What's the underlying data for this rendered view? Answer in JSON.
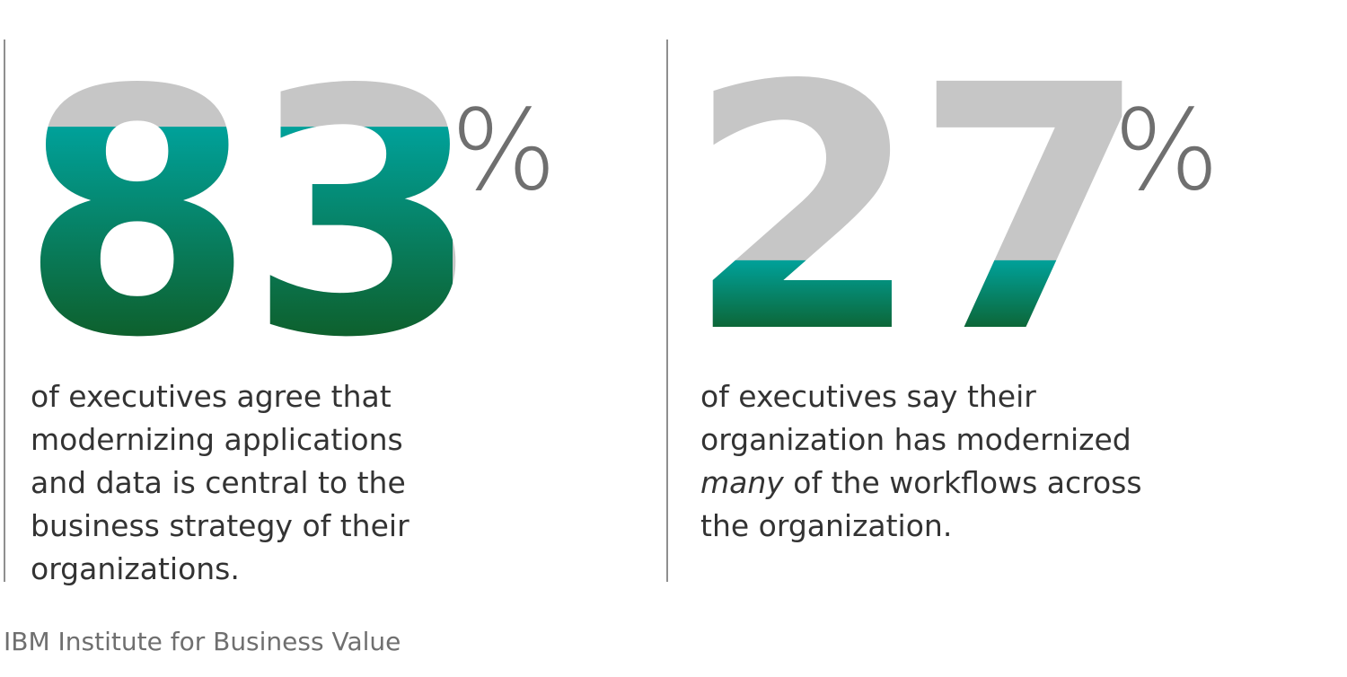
{
  "chart_data": [
    {
      "type": "stat",
      "value": 83,
      "value_label": "83",
      "unit": "%",
      "fill_fraction": 0.83,
      "caption": "of executives agree that modernizing applications and data is central to the business strategy of their organizations.",
      "caption_parts": {
        "before": "of executives agree that modernizing applications and data is central to the business strategy of their organizations.",
        "emphasis": "",
        "after": ""
      }
    },
    {
      "type": "stat",
      "value": 27,
      "value_label": "27",
      "unit": "%",
      "fill_fraction": 0.27,
      "caption": "of executives say their organization has modernized many of the workflows across the organization.",
      "caption_parts": {
        "before": "of executives say their organization has modernized ",
        "emphasis": "many",
        "after": " of the workflows across the organization."
      }
    }
  ],
  "colors": {
    "fill_top": "#00a19a",
    "fill_bottom": "#0e5f2b",
    "unfilled": "#c6c6c6",
    "percent_sign": "#6f6f6f",
    "caption_text": "#333333",
    "divider": "#8f8f8f",
    "source_text": "#6f6f6f"
  },
  "source": "IBM Institute for Business Value"
}
